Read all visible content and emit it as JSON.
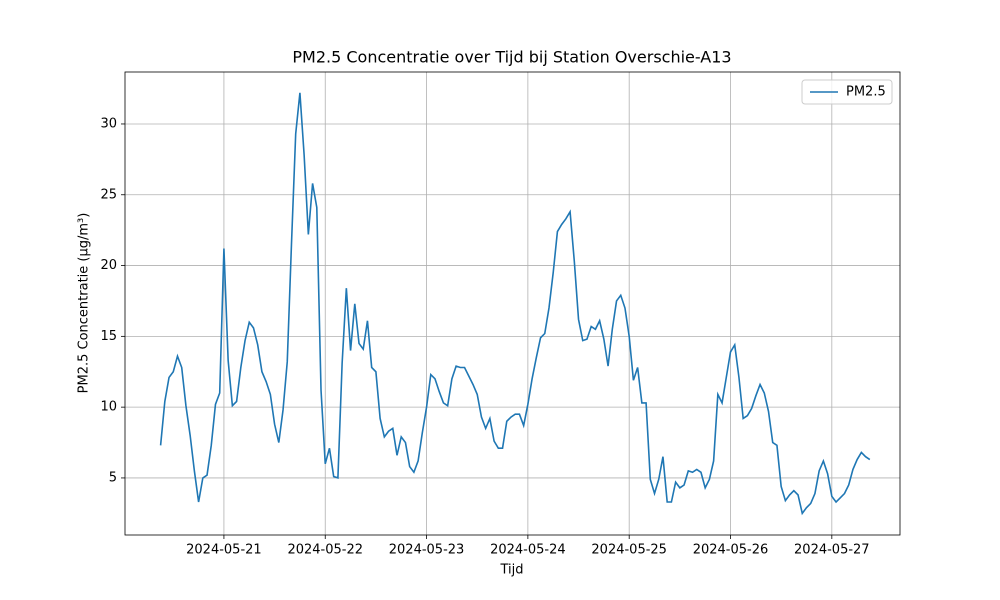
{
  "chart_data": {
    "type": "line",
    "title": "PM2.5 Concentratie over Tijd bij Station Overschie-A13",
    "x_label": "Tijd",
    "y_label": "PM2.5 Concentratie (µg/m³)",
    "x": [
      "2024-05-20 09:00",
      "2024-05-20 10:00",
      "2024-05-20 11:00",
      "2024-05-20 12:00",
      "2024-05-20 13:00",
      "2024-05-20 14:00",
      "2024-05-20 15:00",
      "2024-05-20 16:00",
      "2024-05-20 17:00",
      "2024-05-20 18:00",
      "2024-05-20 19:00",
      "2024-05-20 20:00",
      "2024-05-20 21:00",
      "2024-05-20 22:00",
      "2024-05-20 23:00",
      "2024-05-21 00:00",
      "2024-05-21 01:00",
      "2024-05-21 02:00",
      "2024-05-21 03:00",
      "2024-05-21 04:00",
      "2024-05-21 05:00",
      "2024-05-21 06:00",
      "2024-05-21 07:00",
      "2024-05-21 08:00",
      "2024-05-21 09:00",
      "2024-05-21 10:00",
      "2024-05-21 11:00",
      "2024-05-21 12:00",
      "2024-05-21 13:00",
      "2024-05-21 14:00",
      "2024-05-21 15:00",
      "2024-05-21 16:00",
      "2024-05-21 17:00",
      "2024-05-21 18:00",
      "2024-05-21 19:00",
      "2024-05-21 20:00",
      "2024-05-21 21:00",
      "2024-05-21 22:00",
      "2024-05-21 23:00",
      "2024-05-22 00:00",
      "2024-05-22 01:00",
      "2024-05-22 02:00",
      "2024-05-22 03:00",
      "2024-05-22 04:00",
      "2024-05-22 05:00",
      "2024-05-22 06:00",
      "2024-05-22 07:00",
      "2024-05-22 08:00",
      "2024-05-22 09:00",
      "2024-05-22 10:00",
      "2024-05-22 11:00",
      "2024-05-22 12:00",
      "2024-05-22 13:00",
      "2024-05-22 14:00",
      "2024-05-22 15:00",
      "2024-05-22 16:00",
      "2024-05-22 17:00",
      "2024-05-22 18:00",
      "2024-05-22 19:00",
      "2024-05-22 20:00",
      "2024-05-22 21:00",
      "2024-05-22 22:00",
      "2024-05-22 23:00",
      "2024-05-23 00:00",
      "2024-05-23 01:00",
      "2024-05-23 02:00",
      "2024-05-23 03:00",
      "2024-05-23 04:00",
      "2024-05-23 05:00",
      "2024-05-23 06:00",
      "2024-05-23 07:00",
      "2024-05-23 08:00",
      "2024-05-23 09:00",
      "2024-05-23 10:00",
      "2024-05-23 11:00",
      "2024-05-23 12:00",
      "2024-05-23 13:00",
      "2024-05-23 14:00",
      "2024-05-23 15:00",
      "2024-05-23 16:00",
      "2024-05-23 17:00",
      "2024-05-23 18:00",
      "2024-05-23 19:00",
      "2024-05-23 20:00",
      "2024-05-23 21:00",
      "2024-05-23 22:00",
      "2024-05-23 23:00",
      "2024-05-24 00:00",
      "2024-05-24 01:00",
      "2024-05-24 02:00",
      "2024-05-24 03:00",
      "2024-05-24 04:00",
      "2024-05-24 05:00",
      "2024-05-24 06:00",
      "2024-05-24 07:00",
      "2024-05-24 08:00",
      "2024-05-24 09:00",
      "2024-05-24 10:00",
      "2024-05-24 11:00",
      "2024-05-24 12:00",
      "2024-05-24 13:00",
      "2024-05-24 14:00",
      "2024-05-24 15:00",
      "2024-05-24 16:00",
      "2024-05-24 17:00",
      "2024-05-24 18:00",
      "2024-05-24 19:00",
      "2024-05-24 20:00",
      "2024-05-24 21:00",
      "2024-05-24 22:00",
      "2024-05-24 23:00",
      "2024-05-25 00:00",
      "2024-05-25 01:00",
      "2024-05-25 02:00",
      "2024-05-25 03:00",
      "2024-05-25 04:00",
      "2024-05-25 05:00",
      "2024-05-25 06:00",
      "2024-05-25 07:00",
      "2024-05-25 08:00",
      "2024-05-25 09:00",
      "2024-05-25 10:00",
      "2024-05-25 11:00",
      "2024-05-25 12:00",
      "2024-05-25 13:00",
      "2024-05-25 14:00",
      "2024-05-25 15:00",
      "2024-05-25 16:00",
      "2024-05-25 17:00",
      "2024-05-25 18:00",
      "2024-05-25 19:00",
      "2024-05-25 20:00",
      "2024-05-25 21:00",
      "2024-05-25 22:00",
      "2024-05-25 23:00",
      "2024-05-26 00:00",
      "2024-05-26 01:00",
      "2024-05-26 02:00",
      "2024-05-26 03:00",
      "2024-05-26 04:00",
      "2024-05-26 05:00",
      "2024-05-26 06:00",
      "2024-05-26 07:00",
      "2024-05-26 08:00",
      "2024-05-26 09:00",
      "2024-05-26 10:00",
      "2024-05-26 11:00",
      "2024-05-26 12:00",
      "2024-05-26 13:00",
      "2024-05-26 14:00",
      "2024-05-26 15:00",
      "2024-05-26 16:00",
      "2024-05-26 17:00",
      "2024-05-26 18:00",
      "2024-05-26 19:00",
      "2024-05-26 20:00",
      "2024-05-26 21:00",
      "2024-05-26 22:00",
      "2024-05-26 23:00",
      "2024-05-27 00:00",
      "2024-05-27 01:00",
      "2024-05-27 02:00",
      "2024-05-27 03:00",
      "2024-05-27 04:00",
      "2024-05-27 05:00",
      "2024-05-27 06:00",
      "2024-05-27 07:00",
      "2024-05-27 08:00",
      "2024-05-27 09:00"
    ],
    "series": [
      {
        "name": "PM2.5",
        "color": "#1f77b4",
        "values": [
          7.3,
          10.4,
          12.1,
          12.5,
          13.6,
          12.8,
          10.1,
          8.0,
          5.5,
          3.3,
          5.0,
          5.2,
          7.3,
          10.2,
          11.0,
          21.2,
          13.3,
          10.1,
          10.4,
          12.8,
          14.7,
          16.0,
          15.6,
          14.4,
          12.5,
          11.8,
          10.9,
          8.8,
          7.5,
          9.8,
          13.2,
          21.5,
          29.3,
          32.2,
          27.8,
          22.2,
          25.8,
          24.1,
          11.2,
          6.0,
          7.1,
          5.1,
          5.0,
          13.1,
          18.4,
          14.0,
          17.3,
          14.5,
          14.1,
          16.1,
          12.8,
          12.5,
          9.2,
          7.9,
          8.3,
          8.5,
          6.6,
          7.9,
          7.5,
          5.8,
          5.4,
          6.2,
          8.2,
          10.0,
          12.3,
          12.0,
          11.1,
          10.3,
          10.1,
          12.0,
          12.9,
          12.8,
          12.8,
          12.2,
          11.6,
          10.9,
          9.3,
          8.5,
          9.2,
          7.6,
          7.1,
          7.1,
          9.0,
          9.3,
          9.5,
          9.5,
          8.7,
          10.2,
          12.0,
          13.5,
          14.9,
          15.2,
          17.0,
          19.5,
          22.4,
          22.9,
          23.3,
          23.8,
          20.3,
          16.2,
          14.7,
          14.8,
          15.7,
          15.5,
          16.1,
          14.8,
          12.9,
          15.5,
          17.5,
          17.9,
          17.0,
          15.0,
          11.9,
          12.8,
          10.3,
          10.3,
          4.9,
          3.9,
          4.9,
          6.5,
          3.3,
          3.3,
          4.7,
          4.3,
          4.5,
          5.5,
          5.4,
          5.6,
          5.4,
          4.3,
          4.9,
          6.2,
          10.9,
          10.3,
          12.1,
          13.9,
          14.4,
          12.1,
          9.2,
          9.4,
          9.9,
          10.8,
          11.6,
          11.0,
          9.7,
          7.5,
          7.3,
          4.4,
          3.4,
          3.8,
          4.1,
          3.8,
          2.5,
          2.9,
          3.2,
          3.9,
          5.5,
          6.2,
          5.3,
          3.7,
          3.3,
          3.6,
          3.9,
          4.5,
          5.6,
          6.3,
          6.8,
          6.5,
          6.3
        ]
      }
    ],
    "xlim": [
      "2024-05-20 00:34",
      "2024-05-27 16:09"
    ],
    "xticks": [
      "2024-05-21",
      "2024-05-22",
      "2024-05-23",
      "2024-05-24",
      "2024-05-25",
      "2024-05-26",
      "2024-05-27"
    ],
    "ylim": [
      0.97,
      33.67
    ],
    "yticks": [
      5,
      10,
      15,
      20,
      25,
      30
    ],
    "grid": true,
    "legend": "upper right"
  }
}
